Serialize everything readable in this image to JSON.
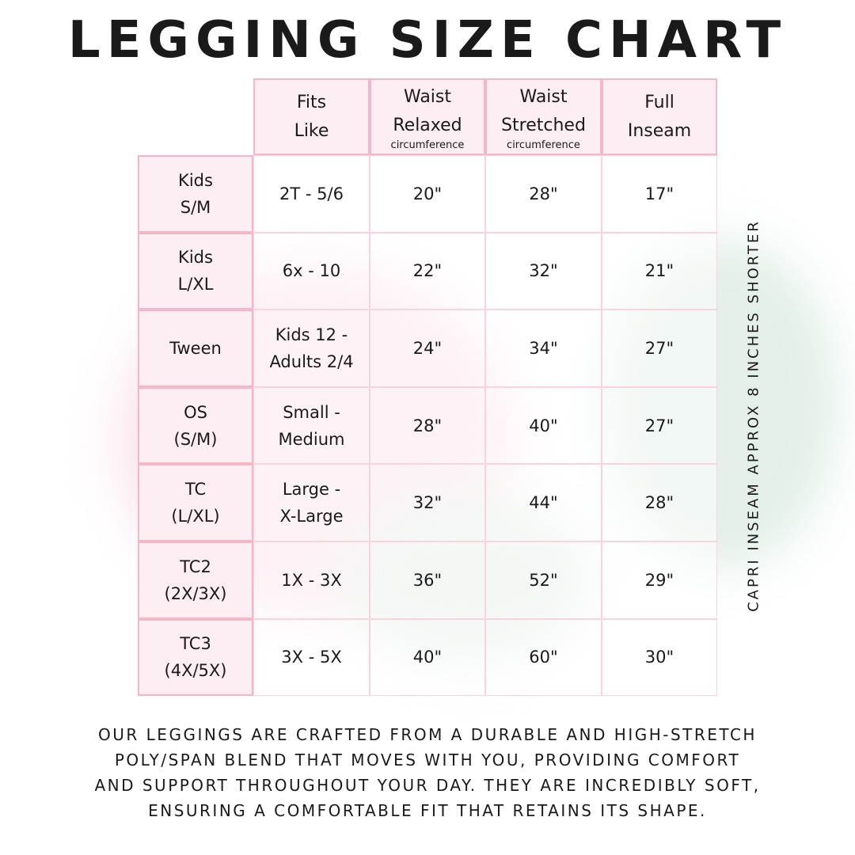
{
  "title": "LEGGING SIZE CHART",
  "table": {
    "headers": [
      {
        "line1": "Fits",
        "line2": "Like",
        "sub": ""
      },
      {
        "line1": "Waist",
        "line2": "Relaxed",
        "sub": "circumference"
      },
      {
        "line1": "Waist",
        "line2": "Stretched",
        "sub": "circumference"
      },
      {
        "line1": "Full",
        "line2": "Inseam",
        "sub": ""
      }
    ],
    "rows": [
      {
        "size1": "Kids",
        "size2": "S/M",
        "fits1": "2T - 5/6",
        "fits2": "",
        "relaxed": "20\"",
        "stretched": "28\"",
        "inseam": "17\""
      },
      {
        "size1": "Kids",
        "size2": "L/XL",
        "fits1": "6x - 10",
        "fits2": "",
        "relaxed": "22\"",
        "stretched": "32\"",
        "inseam": "21\""
      },
      {
        "size1": "Tween",
        "size2": "",
        "fits1": "Kids 12 -",
        "fits2": "Adults 2/4",
        "relaxed": "24\"",
        "stretched": "34\"",
        "inseam": "27\""
      },
      {
        "size1": "OS",
        "size2": "(S/M)",
        "fits1": "Small -",
        "fits2": "Medium",
        "relaxed": "28\"",
        "stretched": "40\"",
        "inseam": "27\""
      },
      {
        "size1": "TC",
        "size2": "(L/XL)",
        "fits1": "Large -",
        "fits2": "X-Large",
        "relaxed": "32\"",
        "stretched": "44\"",
        "inseam": "28\""
      },
      {
        "size1": "TC2",
        "size2": "(2X/3X)",
        "fits1": "1X - 3X",
        "fits2": "",
        "relaxed": "36\"",
        "stretched": "52\"",
        "inseam": "29\""
      },
      {
        "size1": "TC3",
        "size2": "(4X/5X)",
        "fits1": "3X - 5X",
        "fits2": "",
        "relaxed": "40\"",
        "stretched": "60\"",
        "inseam": "30\""
      }
    ]
  },
  "side_note": "CAPRI INSEAM APPROX 8 INCHES SHORTER",
  "description": [
    "Our leggings are crafted from a durable and high-stretch",
    "poly/span blend that moves with you, providing comfort",
    "and support throughout your day. They are incredibly soft,",
    "ensuring a comfortable fit that retains its shape."
  ],
  "colors": {
    "border": "#f7b6c8",
    "header_bg": "#fdeef3"
  }
}
